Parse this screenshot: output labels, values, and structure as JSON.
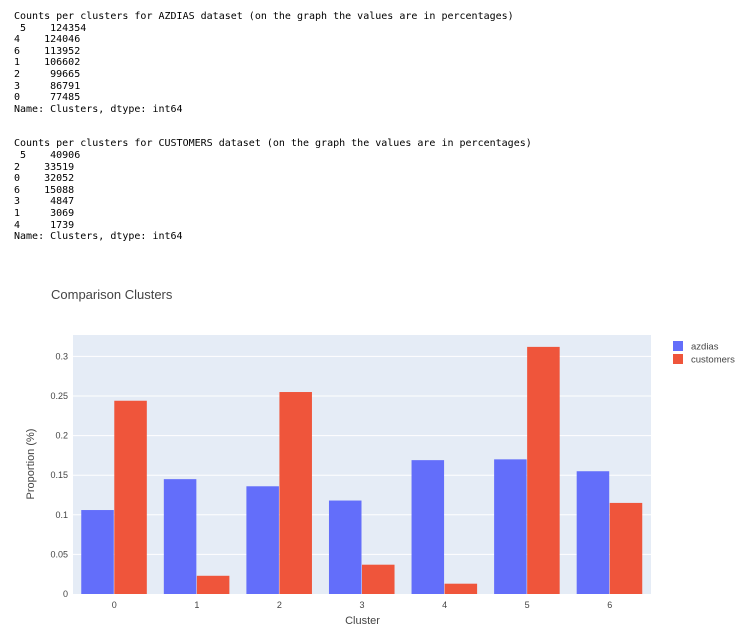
{
  "output": {
    "azdias_header": "Counts per clusters for AZDIAS dataset (on the graph the values are in percentages)",
    "azdias_rows": [
      " 5    124354",
      "4    124046",
      "6    113952",
      "1    106602",
      "2     99665",
      "3     86791",
      "0     77485"
    ],
    "azdias_footer": "Name: Clusters, dtype: int64",
    "customers_header": "Counts per clusters for CUSTOMERS dataset (on the graph the values are in percentages)",
    "customers_rows": [
      " 5    40906",
      "2    33519",
      "0    32052",
      "6    15088",
      "3     4847",
      "1     3069",
      "4     1739"
    ],
    "customers_footer": "Name: Clusters, dtype: int64"
  },
  "colors": {
    "azdias": "#636efa",
    "customers": "#ef553b",
    "plot_bg": "#e5ecf6",
    "grid": "#ffffff"
  },
  "chart_data": {
    "type": "bar",
    "title": "Comparison Clusters",
    "xlabel": "Cluster",
    "ylabel": "Proportion (%)",
    "categories": [
      "0",
      "1",
      "2",
      "3",
      "4",
      "5",
      "6"
    ],
    "series": [
      {
        "name": "azdias",
        "values": [
          0.106,
          0.145,
          0.136,
          0.118,
          0.169,
          0.17,
          0.155
        ]
      },
      {
        "name": "customers",
        "values": [
          0.244,
          0.023,
          0.255,
          0.037,
          0.013,
          0.312,
          0.115
        ]
      }
    ],
    "yticks": [
      0,
      0.05,
      0.1,
      0.15,
      0.2,
      0.25,
      0.3
    ],
    "ytick_labels": [
      "0",
      "0.05",
      "0.1",
      "0.15",
      "0.2",
      "0.25",
      "0.3"
    ],
    "ylim": [
      0,
      0.327
    ],
    "grid": true,
    "legend_position": "top-right"
  }
}
